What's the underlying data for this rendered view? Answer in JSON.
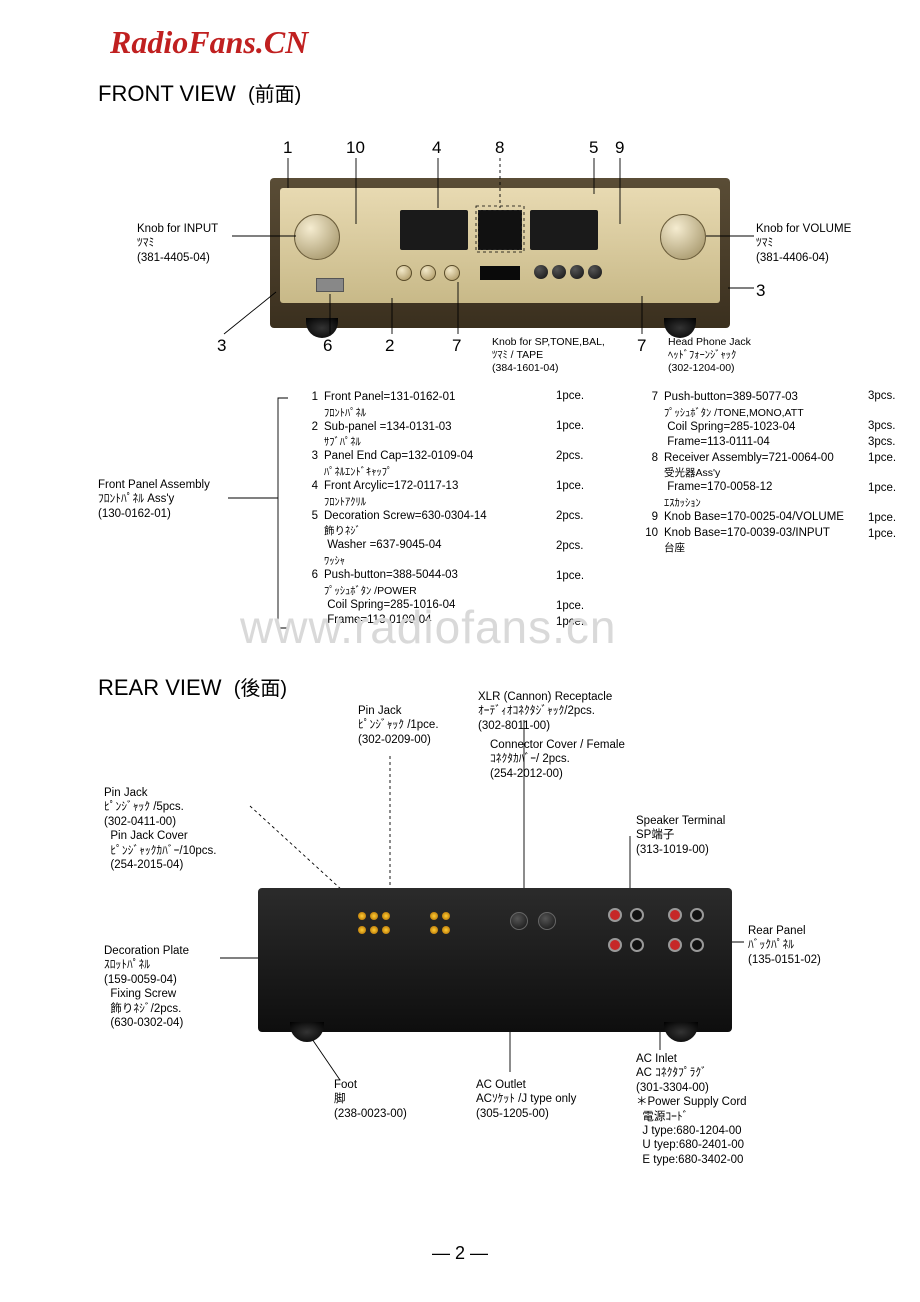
{
  "brand": "RadioFans.CN",
  "front_title": "FRONT VIEW",
  "front_title_jp": "(前面)",
  "rear_title": "REAR VIEW",
  "rear_title_jp": "(後面)",
  "page_number": "— 2 —",
  "watermark": "www.radiofans.cn",
  "front_callouts": {
    "n1": "1",
    "n10": "10",
    "n4": "4",
    "n8": "8",
    "n5": "5",
    "n9": "9",
    "n3a": "3",
    "n6": "6",
    "n2": "2",
    "n7a": "7",
    "n7b": "7",
    "n3b": "3",
    "knob_input": "Knob for INPUT\nﾂﾏﾐ\n(381-4405-04)",
    "knob_volume": "Knob for VOLUME\nﾂﾏﾐ\n(381-4406-04)",
    "knob_sp": "Knob for SP,TONE,BAL,\nﾂﾏﾐ / TAPE\n(384-1601-04)",
    "headphone": "Head Phone Jack\nﾍｯﾄﾞﾌｫｰﾝｼﾞｬｯｸ\n(302-1204-00)",
    "assembly": "Front Panel Assembly\nﾌﾛﾝﾄﾊﾟﾈﾙ Ass'y\n(130-0162-01)"
  },
  "parts_left": [
    {
      "n": "1",
      "en": "Front Panel=131-0162-01",
      "jp": "ﾌﾛﾝﾄﾊﾟﾈﾙ",
      "q": "1pce."
    },
    {
      "n": "2",
      "en": "Sub-panel =134-0131-03",
      "jp": "ｻﾌﾞﾊﾟﾈﾙ",
      "q": "1pce."
    },
    {
      "n": "3",
      "en": "Panel End Cap=132-0109-04",
      "jp": "ﾊﾟﾈﾙｴﾝﾄﾞｷｬｯﾌﾟ",
      "q": "2pcs."
    },
    {
      "n": "4",
      "en": "Front Arcylic=172-0117-13",
      "jp": "ﾌﾛﾝﾄｱｸﾘﾙ",
      "q": "1pce."
    },
    {
      "n": "5",
      "en": "Decoration Screw=630-0304-14",
      "jp": "飾りﾈｼﾞ",
      "q": "2pcs."
    },
    {
      "n": "",
      "en": "     Washer =637-9045-04",
      "jp": "     ﾜｯｼｬ",
      "q": "2pcs."
    },
    {
      "n": "6",
      "en": "Push-button=388-5044-03",
      "jp": "ﾌﾟｯｼｭﾎﾞﾀﾝ /POWER",
      "q": "1pce."
    },
    {
      "n": "",
      "en": "     Coil Spring=285-1016-04",
      "jp": "",
      "q": "1pce."
    },
    {
      "n": "",
      "en": "     Frame=113-0100-04",
      "jp": "",
      "q": "1pce."
    }
  ],
  "parts_right": [
    {
      "n": "7",
      "en": "Push-button=389-5077-03",
      "jp": "ﾌﾟｯｼｭﾎﾞﾀﾝ /TONE,MONO,ATT",
      "q": "3pcs."
    },
    {
      "n": "",
      "en": "     Coil Spring=285-1023-04",
      "jp": "",
      "q": "3pcs."
    },
    {
      "n": "",
      "en": "     Frame=113-0111-04",
      "jp": "",
      "q": "3pcs."
    },
    {
      "n": "8",
      "en": "Receiver Assembly=721-0064-00",
      "jp": "受光器Ass'y",
      "q": "1pce."
    },
    {
      "n": "",
      "en": "     Frame=170-0058-12",
      "jp": "     ｴｽｶｯｼｮﾝ",
      "q": "1pce."
    },
    {
      "n": "9",
      "en": "Knob Base=170-0025-04/VOLUME",
      "jp": "",
      "q": "1pce."
    },
    {
      "n": "10",
      "en": "Knob Base=170-0039-03/INPUT",
      "jp": "台座",
      "q": "1pce."
    }
  ],
  "rear_labels": {
    "pin_jack_1pce": "Pin Jack\nﾋﾟﾝｼﾞｬｯｸ /1pce.\n(302-0209-00)",
    "xlr": "XLR (Cannon) Receptacle\nｵｰﾃﾞｨｵｺﾈｸﾀｼﾞｬｯｸ/2pcs.\n(302-8011-00)",
    "conn_cover": "Connector Cover / Female\nｺﾈｸﾀｶﾊﾞｰ/ 2pcs.\n(254-2012-00)",
    "pin_jack_5pcs": "Pin Jack\nﾋﾟﾝｼﾞｬｯｸ /5pcs.\n(302-0411-00)\n  Pin Jack Cover\n  ﾋﾟﾝｼﾞｬｯｸｶﾊﾞｰ/10pcs.\n  (254-2015-04)",
    "speaker": "Speaker Terminal\nSP端子\n(313-1019-00)",
    "deco_plate": "Decoration Plate\nｽﾛｯﾄﾊﾟﾈﾙ\n(159-0059-04)\n  Fixing Screw\n  飾りﾈｼﾞ/2pcs.\n  (630-0302-04)",
    "rear_panel": "Rear Panel\nﾊﾞｯｸﾊﾟﾈﾙ\n(135-0151-02)",
    "foot": "Foot\n脚\n(238-0023-00)",
    "ac_outlet": "AC Outlet\nACｿｹｯﾄ /J type only\n(305-1205-00)",
    "ac_inlet": "AC Inlet\nAC ｺﾈｸﾀﾌﾟﾗｸﾞ\n(301-3304-00)\n＊Power Supply Cord\n  電源ｺｰﾄﾞ\n  J type:680-1204-00\n  U tyep:680-2401-00\n  E type:680-3402-00"
  },
  "colors": {
    "brand": "#c02020",
    "panel_light": "#e8dab2",
    "panel_dark": "#c8b988",
    "body_dark": "#1a1a1a"
  }
}
